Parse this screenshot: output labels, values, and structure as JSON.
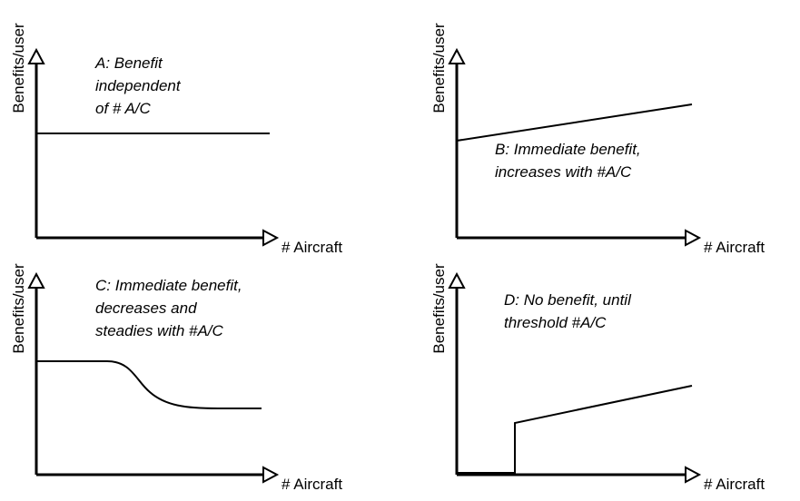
{
  "panels": [
    {
      "y_label": "Benefits/user",
      "x_label": "# Aircraft",
      "caption": [
        "A: Benefit",
        "independent",
        "of # A/C"
      ]
    },
    {
      "y_label": "Benefits/user",
      "x_label": "# Aircraft",
      "caption": [
        "B: Immediate benefit,",
        "increases with #A/C"
      ]
    },
    {
      "y_label": "Benefits/user",
      "x_label": "# Aircraft",
      "caption": [
        "C: Immediate benefit,",
        "decreases and",
        "steadies with #A/C"
      ]
    },
    {
      "y_label": "Benefits/user",
      "x_label": "# Aircraft",
      "caption": [
        "D: No benefit, until",
        "threshold #A/C"
      ]
    }
  ]
}
